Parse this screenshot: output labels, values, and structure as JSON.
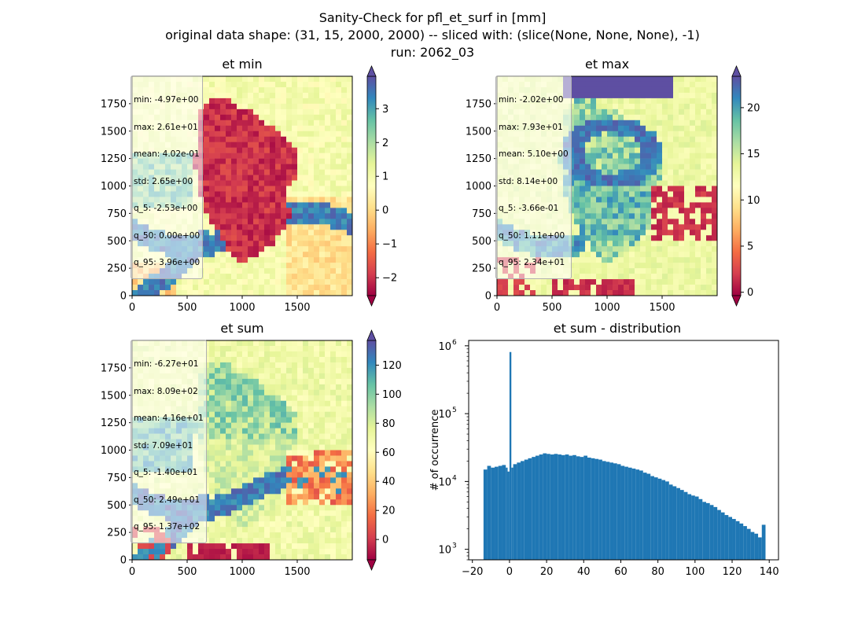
{
  "figure": {
    "title_line1": "Sanity-Check for pfl_et_surf in [mm]",
    "title_line2": "original data shape: (31, 15, 2000, 2000) -- sliced with: (slice(None, None, None), -1)",
    "title_line3": "run: 2062_03"
  },
  "panels": [
    {
      "title": "et min",
      "stats": [
        "min: -4.97e+00",
        "max: 2.61e+01",
        "mean: 4.02e-01",
        "std: 2.65e+00",
        "q_5: -2.53e+00",
        "q_50: 0.00e+00",
        "q_95: 3.96e+00"
      ],
      "xticks": [
        "0",
        "500",
        "1000",
        "1500"
      ],
      "yticks": [
        "0",
        "250",
        "500",
        "750",
        "1000",
        "1250",
        "1500",
        "1750"
      ],
      "colorbar_ticks": [
        "−2",
        "−1",
        "0",
        "1",
        "2",
        "3"
      ],
      "colorbar_range": [
        -2.53,
        3.96
      ]
    },
    {
      "title": "et max",
      "stats": [
        "min: -2.02e+00",
        "max: 7.93e+01",
        "mean: 5.10e+00",
        "std: 8.14e+00",
        "q_5: -3.66e-01",
        "q_50: 1.11e+00",
        "q_95: 2.34e+01"
      ],
      "xticks": [
        "0",
        "500",
        "1000",
        "1500"
      ],
      "yticks": [
        "0",
        "250",
        "500",
        "750",
        "1000",
        "1250",
        "1500",
        "1750"
      ],
      "colorbar_ticks": [
        "0",
        "5",
        "10",
        "15",
        "20"
      ],
      "colorbar_range": [
        -0.366,
        23.4
      ]
    },
    {
      "title": "et sum",
      "stats": [
        "min: -6.27e+01",
        "max: 8.09e+02",
        "mean: 4.16e+01",
        "std: 7.09e+01",
        "q_5: -1.40e+01",
        "q_50: 2.49e+01",
        "q_95: 1.37e+02"
      ],
      "xticks": [
        "0",
        "500",
        "1000",
        "1500"
      ],
      "yticks": [
        "0",
        "250",
        "500",
        "750",
        "1000",
        "1250",
        "1500",
        "1750"
      ],
      "colorbar_ticks": [
        "0",
        "20",
        "40",
        "60",
        "80",
        "100",
        "120"
      ],
      "colorbar_range": [
        -14.0,
        137.0
      ]
    }
  ],
  "colormap": [
    "#9e0142",
    "#d53e4f",
    "#f46d43",
    "#fdae61",
    "#fee08b",
    "#ffffbf",
    "#e6f598",
    "#abdda4",
    "#66c2a5",
    "#3288bd",
    "#5e4fa2"
  ],
  "chart_data": [
    {
      "type": "heatmap",
      "title": "et min",
      "xlim": [
        0,
        2000
      ],
      "ylim": [
        0,
        2000
      ],
      "colorbar_range": [
        -2.53,
        3.96
      ],
      "colormap": "Spectral"
    },
    {
      "type": "heatmap",
      "title": "et max",
      "xlim": [
        0,
        2000
      ],
      "ylim": [
        0,
        2000
      ],
      "colorbar_range": [
        -0.366,
        23.4
      ],
      "colormap": "Spectral"
    },
    {
      "type": "heatmap",
      "title": "et sum",
      "xlim": [
        0,
        2000
      ],
      "ylim": [
        0,
        2000
      ],
      "colorbar_range": [
        -14.0,
        137.0
      ],
      "colormap": "Spectral"
    },
    {
      "type": "bar",
      "title": "et sum - distribution",
      "ylabel": "# of occurrence",
      "xlabel": "",
      "yscale": "log",
      "xlim": [
        -22,
        145
      ],
      "ylim": [
        700,
        1200000
      ],
      "xticks": [
        "−20",
        "0",
        "20",
        "40",
        "60",
        "80",
        "100",
        "120",
        "140"
      ],
      "ytick_exponents": [
        "3",
        "4",
        "5",
        "6"
      ],
      "bar_color": "#1f77b4",
      "bins": [
        {
          "x": -14,
          "v": 15000
        },
        {
          "x": -12,
          "v": 17000
        },
        {
          "x": -10,
          "v": 16000
        },
        {
          "x": -8,
          "v": 16500
        },
        {
          "x": -6,
          "v": 17000
        },
        {
          "x": -4,
          "v": 17500
        },
        {
          "x": -2,
          "v": 16000
        },
        {
          "x": -1,
          "v": 14000
        },
        {
          "x": 0,
          "v": 810000
        },
        {
          "x": 1,
          "v": 16000
        },
        {
          "x": 2,
          "v": 18000
        },
        {
          "x": 4,
          "v": 19000
        },
        {
          "x": 6,
          "v": 20000
        },
        {
          "x": 8,
          "v": 21000
        },
        {
          "x": 10,
          "v": 22000
        },
        {
          "x": 12,
          "v": 23000
        },
        {
          "x": 14,
          "v": 24000
        },
        {
          "x": 16,
          "v": 25000
        },
        {
          "x": 18,
          "v": 26000
        },
        {
          "x": 20,
          "v": 25500
        },
        {
          "x": 22,
          "v": 25000
        },
        {
          "x": 24,
          "v": 25500
        },
        {
          "x": 26,
          "v": 25000
        },
        {
          "x": 28,
          "v": 24500
        },
        {
          "x": 30,
          "v": 25000
        },
        {
          "x": 32,
          "v": 24000
        },
        {
          "x": 34,
          "v": 24500
        },
        {
          "x": 36,
          "v": 23500
        },
        {
          "x": 38,
          "v": 23000
        },
        {
          "x": 40,
          "v": 24000
        },
        {
          "x": 42,
          "v": 22500
        },
        {
          "x": 44,
          "v": 22000
        },
        {
          "x": 46,
          "v": 21500
        },
        {
          "x": 48,
          "v": 21000
        },
        {
          "x": 50,
          "v": 20000
        },
        {
          "x": 52,
          "v": 19500
        },
        {
          "x": 54,
          "v": 19000
        },
        {
          "x": 56,
          "v": 18500
        },
        {
          "x": 58,
          "v": 18000
        },
        {
          "x": 60,
          "v": 17000
        },
        {
          "x": 62,
          "v": 16500
        },
        {
          "x": 64,
          "v": 16000
        },
        {
          "x": 66,
          "v": 15500
        },
        {
          "x": 68,
          "v": 15000
        },
        {
          "x": 70,
          "v": 14500
        },
        {
          "x": 72,
          "v": 13500
        },
        {
          "x": 74,
          "v": 13000
        },
        {
          "x": 76,
          "v": 12000
        },
        {
          "x": 78,
          "v": 11500
        },
        {
          "x": 80,
          "v": 11000
        },
        {
          "x": 82,
          "v": 10500
        },
        {
          "x": 84,
          "v": 10000
        },
        {
          "x": 86,
          "v": 9000
        },
        {
          "x": 88,
          "v": 8500
        },
        {
          "x": 90,
          "v": 8000
        },
        {
          "x": 92,
          "v": 7500
        },
        {
          "x": 94,
          "v": 7000
        },
        {
          "x": 96,
          "v": 6500
        },
        {
          "x": 98,
          "v": 6200
        },
        {
          "x": 100,
          "v": 6000
        },
        {
          "x": 102,
          "v": 5500
        },
        {
          "x": 104,
          "v": 5000
        },
        {
          "x": 106,
          "v": 4800
        },
        {
          "x": 108,
          "v": 4500
        },
        {
          "x": 110,
          "v": 4200
        },
        {
          "x": 112,
          "v": 3800
        },
        {
          "x": 114,
          "v": 3500
        },
        {
          "x": 116,
          "v": 3200
        },
        {
          "x": 118,
          "v": 3000
        },
        {
          "x": 120,
          "v": 2800
        },
        {
          "x": 122,
          "v": 2600
        },
        {
          "x": 124,
          "v": 2400
        },
        {
          "x": 126,
          "v": 2200
        },
        {
          "x": 128,
          "v": 2000
        },
        {
          "x": 130,
          "v": 1800
        },
        {
          "x": 132,
          "v": 1700
        },
        {
          "x": 134,
          "v": 1500
        },
        {
          "x": 136,
          "v": 2300
        }
      ]
    }
  ]
}
